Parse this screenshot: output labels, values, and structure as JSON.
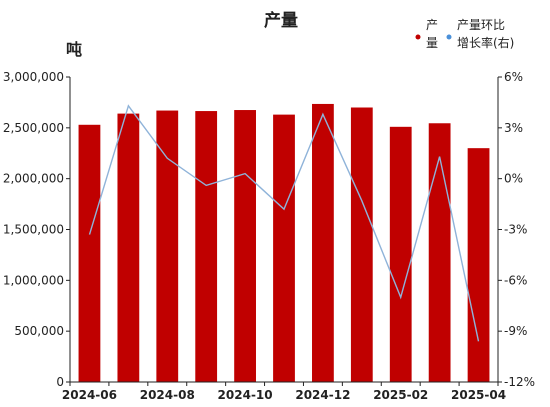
{
  "chart_data": {
    "type": "bar+line",
    "title": "产量",
    "y_left_unit": "吨",
    "categories": [
      "2024-06",
      "2024-07",
      "2024-08",
      "2024-09",
      "2024-10",
      "2024-11",
      "2024-12",
      "2025-01",
      "2025-02",
      "2025-03",
      "2025-04"
    ],
    "x_tick_labels": [
      "2024-06",
      "2024-08",
      "2024-10",
      "2024-12",
      "2025-02",
      "2025-04"
    ],
    "x_tick_categories": [
      "2024-06",
      "2024-08",
      "2024-10",
      "2024-12",
      "2025-02",
      "2025-04"
    ],
    "y_left": {
      "min": 0,
      "max": 3000000,
      "ticks": [
        0,
        500000,
        1000000,
        1500000,
        2000000,
        2500000,
        3000000
      ],
      "tick_labels": [
        "0",
        "500,000",
        "1,000,000",
        "1,500,000",
        "2,000,000",
        "2,500,000",
        "3,000,000"
      ]
    },
    "y_right": {
      "min": -12,
      "max": 6,
      "ticks": [
        -12,
        -9,
        -6,
        -3,
        0,
        3,
        6
      ],
      "tick_labels": [
        "-12%",
        "-9%",
        "-6%",
        "-3%",
        "0%",
        "3%",
        "6%"
      ]
    },
    "series": [
      {
        "name": "产量",
        "kind": "bar",
        "axis": "left",
        "color": "#c00000",
        "values": [
          2530000,
          2640000,
          2670000,
          2665000,
          2675000,
          2630000,
          2735000,
          2700000,
          2510000,
          2545000,
          2300000
        ]
      },
      {
        "name": "产量环比增长率(右)",
        "kind": "line",
        "axis": "right",
        "color": "#8fb3d9",
        "values": [
          -3.3,
          4.3,
          1.2,
          -0.4,
          0.3,
          -1.8,
          3.8,
          -1.3,
          -7.0,
          1.3,
          -9.6
        ]
      }
    ],
    "legend": {
      "position": "top-right",
      "bar_label_lines": [
        "产",
        "量"
      ],
      "line_label_lines": [
        "产量环比",
        "增长率(右)"
      ]
    }
  }
}
